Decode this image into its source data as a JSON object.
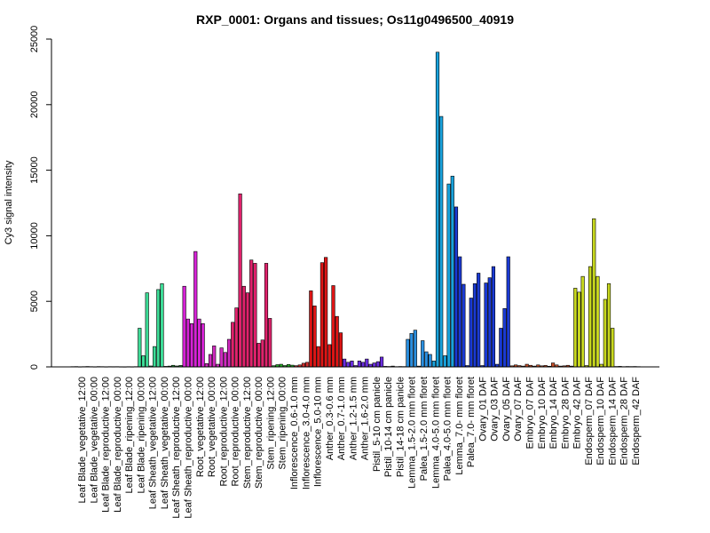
{
  "chart_data": {
    "type": "bar",
    "title": "RXP_0001: Organs and tissues; Os11g0496500_40919",
    "xlabel": "",
    "ylabel": "Cy3 signal intensity",
    "ylim": [
      0,
      25000
    ],
    "yticks": [
      0,
      5000,
      10000,
      15000,
      20000,
      25000
    ],
    "grid": false,
    "legend": "none",
    "labeled_categories": [
      "Leaf Blade_vegetative_12:00",
      "Leaf Blade_vegetative_00:00",
      "Leaf Blade_reproductive_12:00",
      "Leaf Blade_reproductive_00:00",
      "Leaf Blade_ripening_12:00",
      "Leaf Blade_ripening_00:00",
      "Leaf Sheath_vegetative_12:00",
      "Leaf Sheath_vegetative_00:00",
      "Leaf Sheath_reproductive_12:00",
      "Leaf Sheath_reproductive_00:00",
      "Root_vegetative_12:00",
      "Root_vegetative_00:00",
      "Root_reproductive_12:00",
      "Root_reproductive_00:00",
      "Stem_reproductive_12:00",
      "Stem_reproductive_00:00",
      "Stem_ripening_12:00",
      "Stem_ripening_00:00",
      "Inflorescence_0.6-1.0 mm",
      "Inflorescence_3.0-4.0 mm",
      "Inflorescence_5.0-10 mm",
      "Anther_0.3-0.6 mm",
      "Anther_0.7-1.0 mm",
      "Anther_1.2-1.5 mm",
      "Anther_1.6-2.0 mm",
      "Pistil_5-10 cm panicle",
      "Pistil_10-14 cm panicle",
      "Pistil_14-18 cm panicle",
      "Lemma_1.5-2.0 mm floret",
      "Palea_1.5-2.0 mm floret",
      "Lemma_4.0-5.0 mm floret",
      "Palea_4.0-5.0 mm floret",
      "Lemma_7.0- mm floret",
      "Palea_7.0- mm floret",
      "Ovary_01 DAF",
      "Ovary_03 DAF",
      "Ovary_05 DAF",
      "Ovary_07 DAF",
      "Embryo_07 DAF",
      "Embryo_10 DAF",
      "Embryo_14 DAF",
      "Embryo_28 DAF",
      "Embryo_42 DAF",
      "Endosperm_07 DAF",
      "Endosperm_10 DAF",
      "Endosperm_14 DAF",
      "Endosperm_28 DAF",
      "Endosperm_42 DAF"
    ],
    "groups": [
      {
        "color": "#4d4d4d",
        "values": [
          20,
          25,
          15,
          20,
          30,
          20,
          15,
          25,
          20,
          15,
          20,
          18,
          20,
          15,
          12,
          18,
          15,
          20
        ]
      },
      {
        "color": "#3ddc97",
        "values": [
          2950,
          850,
          5650,
          70,
          1550,
          5900,
          6350
        ]
      },
      {
        "color": "#2a9d3a",
        "values": [
          40,
          60,
          120,
          70,
          110
        ]
      },
      {
        "color": "#d622d6",
        "values": [
          6150,
          3650,
          3300,
          8800,
          3650,
          3300
        ]
      },
      {
        "color": "#d02ac0",
        "values": [
          250,
          950,
          1600,
          200,
          1450,
          1100,
          2100
        ]
      },
      {
        "color": "#e0226c",
        "values": [
          3400,
          4500,
          13200,
          6150,
          5650,
          8150,
          7900,
          1800,
          2050,
          7900,
          3700
        ]
      },
      {
        "color": "#25b025",
        "values": [
          90,
          170,
          200,
          100,
          180,
          130
        ]
      },
      {
        "color": "#d03030",
        "values": [
          90,
          150,
          280,
          350
        ]
      },
      {
        "color": "#dd1515",
        "values": [
          5800,
          4650,
          1550,
          7950,
          8350,
          1700,
          6200,
          3850,
          2600
        ]
      },
      {
        "color": "#6a2ce0",
        "values": [
          600,
          350,
          450,
          100,
          450,
          350,
          600,
          200,
          300,
          400,
          750
        ]
      },
      {
        "color": "#4a4a4a",
        "values": [
          40,
          30,
          60,
          20,
          30,
          25
        ]
      },
      {
        "color": "#2a8fe0",
        "values": [
          2100,
          2550,
          2800,
          60,
          2000,
          1150,
          950
        ]
      },
      {
        "color": "#18a2dc",
        "values": [
          450,
          24000,
          19100,
          850,
          13950,
          14550
        ]
      },
      {
        "color": "#1a3ad4",
        "values": [
          12200,
          8400,
          6300,
          100,
          5250,
          6350,
          7150,
          100,
          6400,
          6800,
          7650,
          200,
          2950,
          4450,
          8400
        ]
      },
      {
        "color": "#c8502a",
        "values": [
          80,
          150,
          100,
          60,
          200,
          120,
          60,
          150,
          80,
          110,
          50,
          300,
          150,
          60,
          80,
          120,
          60
        ]
      },
      {
        "color": "#c8d81e",
        "values": [
          6000,
          5700,
          6900,
          100,
          7650,
          11300,
          6900,
          200,
          5150,
          6350,
          2950
        ]
      },
      {
        "color": "#4a4a4a",
        "values": [
          30,
          40,
          20,
          30,
          25,
          30,
          20
        ]
      }
    ]
  }
}
